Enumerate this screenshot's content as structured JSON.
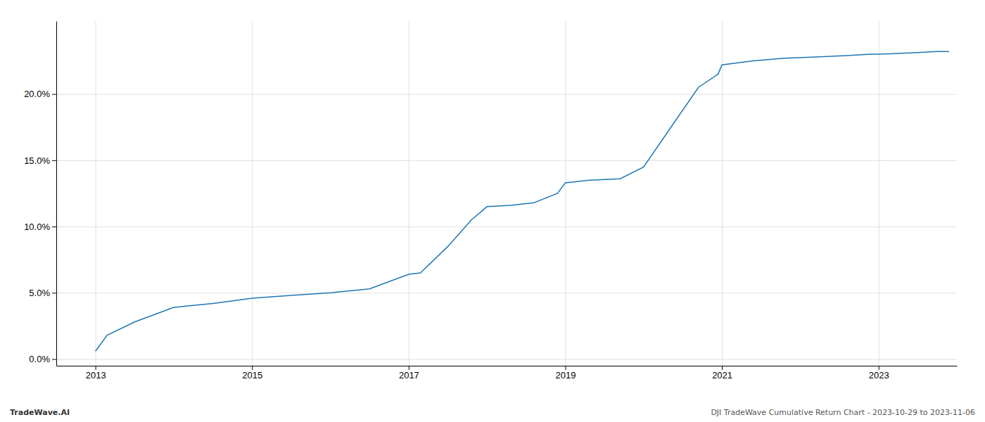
{
  "chart_data": {
    "type": "line",
    "title": "DJI TradeWave Cumulative Return Chart - 2023-10-29 to 2023-11-06",
    "annotations": [
      "TradeWave.AI"
    ],
    "color": "#1f77b4",
    "x": [
      2013.0,
      2013.15,
      2013.5,
      2014.0,
      2014.5,
      2015.0,
      2015.5,
      2016.0,
      2016.5,
      2017.0,
      2017.15,
      2017.5,
      2017.8,
      2018.0,
      2018.3,
      2018.6,
      2018.9,
      2019.0,
      2019.3,
      2019.7,
      2020.0,
      2020.35,
      2020.7,
      2020.95,
      2021.0,
      2021.4,
      2021.8,
      2022.2,
      2022.6,
      2022.9,
      2023.0,
      2023.4,
      2023.75,
      2023.9
    ],
    "values": [
      0.6,
      1.8,
      2.8,
      3.9,
      4.2,
      4.6,
      4.8,
      5.0,
      5.3,
      6.4,
      6.5,
      8.5,
      10.5,
      11.5,
      11.6,
      11.8,
      12.5,
      13.3,
      13.5,
      13.6,
      14.5,
      17.5,
      20.5,
      21.5,
      22.2,
      22.5,
      22.7,
      22.8,
      22.9,
      23.0,
      23.0,
      23.1,
      23.2,
      23.2
    ],
    "xlim": [
      2012.5,
      2024.0
    ],
    "ylim": [
      -0.5,
      25.5
    ],
    "xticks": [
      2013,
      2015,
      2017,
      2019,
      2021,
      2023
    ],
    "yticks": [
      {
        "value": 0.0,
        "label": "0.0%"
      },
      {
        "value": 5.0,
        "label": "5.0%"
      },
      {
        "value": 10.0,
        "label": "10.0%"
      },
      {
        "value": 15.0,
        "label": "15.0%"
      },
      {
        "value": 20.0,
        "label": "20.0%"
      }
    ],
    "grid": true
  }
}
